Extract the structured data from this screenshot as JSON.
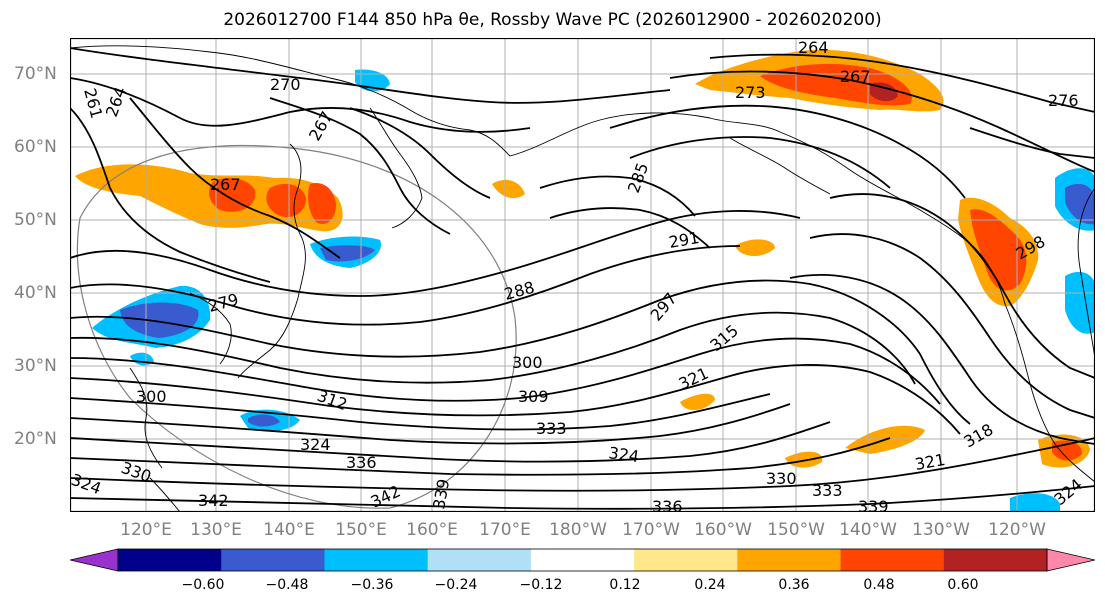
{
  "title": "2026012700 F144 850 hPa θe, Rossby Wave PC (2026012900 - 2026020200)",
  "lat_labels": [
    "70°N",
    "60°N",
    "50°N",
    "40°N",
    "30°N",
    "20°N"
  ],
  "lon_labels": [
    "120°E",
    "130°E",
    "140°E",
    "150°E",
    "160°E",
    "170°E",
    "180°W",
    "170°W",
    "160°W",
    "150°W",
    "140°W",
    "130°W",
    "120°W"
  ],
  "colorbar": {
    "colors": [
      "#9932cc",
      "#00008b",
      "#3a5bd0",
      "#00bfff",
      "#b0e0f8",
      "#ffffff",
      "#ffe88a",
      "#ffa500",
      "#ff4500",
      "#b22222",
      "#ff88aa"
    ],
    "tick_labels": [
      "−0.60",
      "−0.48",
      "−0.36",
      "−0.24",
      "−0.12",
      "0.12",
      "0.24",
      "0.36",
      "0.48",
      "0.60"
    ]
  },
  "contour_labels": [
    "264",
    "270",
    "261",
    "264",
    "267",
    "267",
    "267",
    "273",
    "276",
    "285",
    "291",
    "298",
    "288",
    "297",
    "279",
    "300",
    "315",
    "321",
    "309",
    "312",
    "300",
    "333",
    "324",
    "324",
    "336",
    "330",
    "333",
    "330",
    "339",
    "342",
    "342",
    "339",
    "336",
    "321",
    "318",
    "324",
    "324"
  ]
}
